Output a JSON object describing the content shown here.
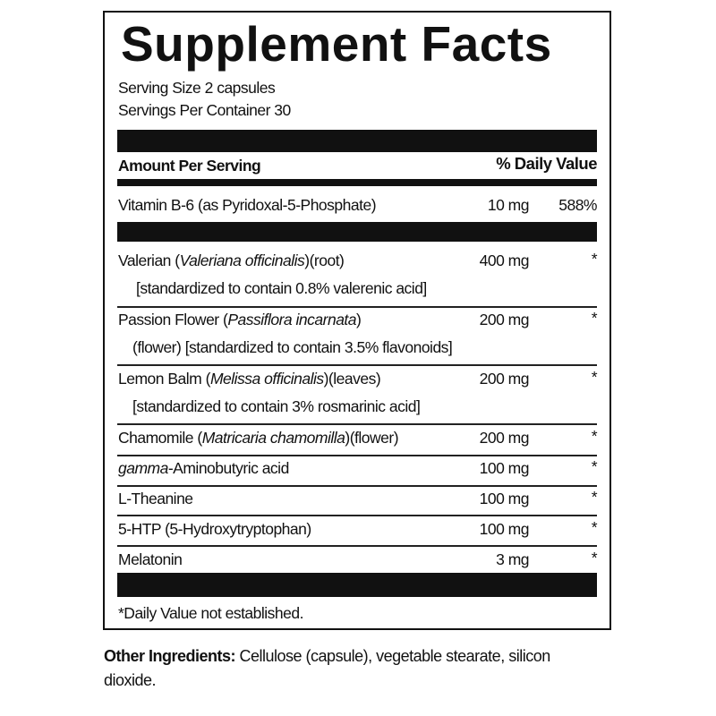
{
  "title": "Supplement Facts",
  "serving_size": "Serving Size 2 capsules",
  "servings_per_container": "Servings Per Container 30",
  "header": {
    "amount_per_serving": "Amount Per Serving",
    "daily_value": "% Daily Value"
  },
  "vitamins": [
    {
      "name": "Vitamin B-6 (as Pyridoxal-5-Phosphate)",
      "amount": "10 mg",
      "dv": "588%"
    }
  ],
  "ingredients": [
    {
      "segments": [
        {
          "text": "Valerian (",
          "italic": false
        },
        {
          "text": "Valeriana officinalis",
          "italic": true
        },
        {
          "text": ")(root)",
          "italic": false
        }
      ],
      "sub": "[standardized to contain 0.8% valerenic acid]",
      "amount": "400 mg",
      "dv": "*"
    },
    {
      "segments": [
        {
          "text": "Passion Flower (",
          "italic": false
        },
        {
          "text": "Passiflora incarnata",
          "italic": true
        },
        {
          "text": ")",
          "italic": false
        }
      ],
      "sub": "(flower) [standardized to contain 3.5% flavonoids]",
      "amount": "200 mg",
      "dv": "*"
    },
    {
      "segments": [
        {
          "text": "Lemon Balm (",
          "italic": false
        },
        {
          "text": "Melissa officinalis",
          "italic": true
        },
        {
          "text": ")(leaves)",
          "italic": false
        }
      ],
      "sub": "[standardized to contain 3% rosmarinic acid]",
      "amount": "200 mg",
      "dv": "*"
    },
    {
      "segments": [
        {
          "text": "Chamomile (",
          "italic": false
        },
        {
          "text": "Matricaria chamomilla",
          "italic": true
        },
        {
          "text": ")(flower)",
          "italic": false
        }
      ],
      "amount": "200 mg",
      "dv": "*"
    },
    {
      "segments": [
        {
          "text": "gamma",
          "italic": true
        },
        {
          "text": "-Aminobutyric acid",
          "italic": false
        }
      ],
      "amount": "100 mg",
      "dv": "*"
    },
    {
      "segments": [
        {
          "text": "L-Theanine",
          "italic": false
        }
      ],
      "amount": "100 mg",
      "dv": "*"
    },
    {
      "segments": [
        {
          "text": "5-HTP  (5-Hydroxytryptophan)",
          "italic": false
        }
      ],
      "amount": "100 mg",
      "dv": "*"
    },
    {
      "segments": [
        {
          "text": "Melatonin",
          "italic": false
        }
      ],
      "amount": "3 mg",
      "dv": "*"
    }
  ],
  "footnote": "*Daily Value not established.",
  "other_ingredients": {
    "label": "Other Ingredients:",
    "text": " Cellulose (capsule), vegetable stearate, silicon",
    "text2": "dioxide."
  }
}
